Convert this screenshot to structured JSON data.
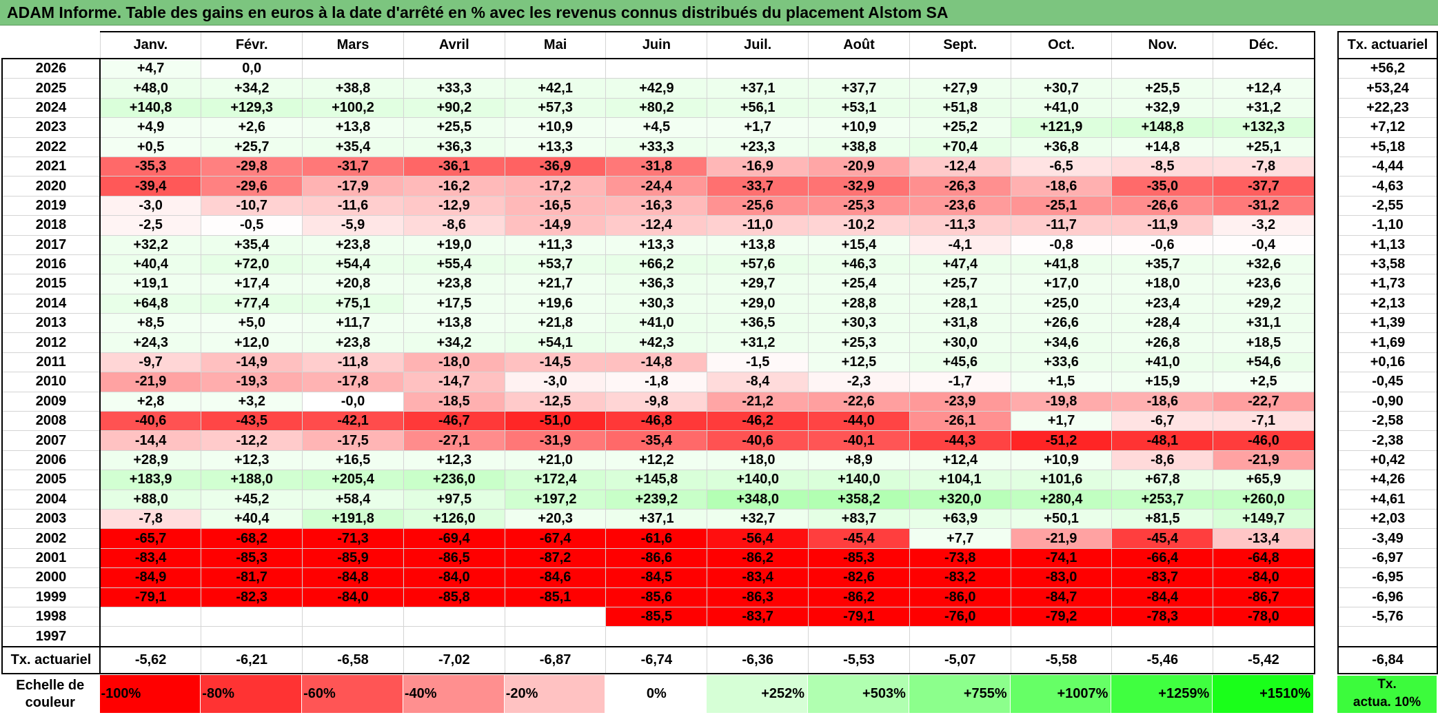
{
  "title": "ADAM Informe. Table des gains en euros à la date d'arrêté en % avec les revenus connus distribués du placement Alstom SA",
  "months": [
    "Janv.",
    "Févr.",
    "Mars",
    "Avril",
    "Mai",
    "Juin",
    "Juil.",
    "Août",
    "Sept.",
    "Oct.",
    "Nov.",
    "Déc."
  ],
  "side_header": "Tx. actuariel",
  "rows": [
    {
      "year": "2026",
      "values": [
        "+4,7",
        "0,0",
        "",
        "",
        "",
        "",
        "",
        "",
        "",
        "",
        "",
        ""
      ],
      "tx": "+56,2"
    },
    {
      "year": "2025",
      "values": [
        "+48,0",
        "+34,2",
        "+38,8",
        "+33,3",
        "+42,1",
        "+42,9",
        "+37,1",
        "+37,7",
        "+27,9",
        "+30,7",
        "+25,5",
        "+12,4"
      ],
      "tx": "+53,24"
    },
    {
      "year": "2024",
      "values": [
        "+140,8",
        "+129,3",
        "+100,2",
        "+90,2",
        "+57,3",
        "+80,2",
        "+56,1",
        "+53,1",
        "+51,8",
        "+41,0",
        "+32,9",
        "+31,2"
      ],
      "tx": "+22,23"
    },
    {
      "year": "2023",
      "values": [
        "+4,9",
        "+2,6",
        "+13,8",
        "+25,5",
        "+10,9",
        "+4,5",
        "+1,7",
        "+10,9",
        "+25,2",
        "+121,9",
        "+148,8",
        "+132,3"
      ],
      "tx": "+7,12"
    },
    {
      "year": "2022",
      "values": [
        "+0,5",
        "+25,7",
        "+35,4",
        "+36,3",
        "+13,3",
        "+33,3",
        "+23,3",
        "+38,8",
        "+70,4",
        "+36,8",
        "+14,8",
        "+25,1"
      ],
      "tx": "+5,18"
    },
    {
      "year": "2021",
      "values": [
        "-35,3",
        "-29,8",
        "-31,7",
        "-36,1",
        "-36,9",
        "-31,8",
        "-16,9",
        "-20,9",
        "-12,4",
        "-6,5",
        "-8,5",
        "-7,8"
      ],
      "tx": "-4,44"
    },
    {
      "year": "2020",
      "values": [
        "-39,4",
        "-29,6",
        "-17,9",
        "-16,2",
        "-17,2",
        "-24,4",
        "-33,7",
        "-32,9",
        "-26,3",
        "-18,6",
        "-35,0",
        "-37,7"
      ],
      "tx": "-4,63"
    },
    {
      "year": "2019",
      "values": [
        "-3,0",
        "-10,7",
        "-11,6",
        "-12,9",
        "-16,5",
        "-16,3",
        "-25,6",
        "-25,3",
        "-23,6",
        "-25,1",
        "-26,6",
        "-31,2"
      ],
      "tx": "-2,55"
    },
    {
      "year": "2018",
      "values": [
        "-2,5",
        "-0,5",
        "-5,9",
        "-8,6",
        "-14,9",
        "-12,4",
        "-11,0",
        "-10,2",
        "-11,3",
        "-11,7",
        "-11,9",
        "-3,2"
      ],
      "tx": "-1,10"
    },
    {
      "year": "2017",
      "values": [
        "+32,2",
        "+35,4",
        "+23,8",
        "+19,0",
        "+11,3",
        "+13,3",
        "+13,8",
        "+15,4",
        "-4,1",
        "-0,8",
        "-0,6",
        "-0,4"
      ],
      "tx": "+1,13"
    },
    {
      "year": "2016",
      "values": [
        "+40,4",
        "+72,0",
        "+54,4",
        "+55,4",
        "+53,7",
        "+66,2",
        "+57,6",
        "+46,3",
        "+47,4",
        "+41,8",
        "+35,7",
        "+32,6"
      ],
      "tx": "+3,58"
    },
    {
      "year": "2015",
      "values": [
        "+19,1",
        "+17,4",
        "+20,8",
        "+23,8",
        "+21,7",
        "+36,3",
        "+29,7",
        "+25,4",
        "+25,7",
        "+17,0",
        "+18,0",
        "+23,6"
      ],
      "tx": "+1,73"
    },
    {
      "year": "2014",
      "values": [
        "+64,8",
        "+77,4",
        "+75,1",
        "+17,5",
        "+19,6",
        "+30,3",
        "+29,0",
        "+28,8",
        "+28,1",
        "+25,0",
        "+23,4",
        "+29,2"
      ],
      "tx": "+2,13"
    },
    {
      "year": "2013",
      "values": [
        "+8,5",
        "+5,0",
        "+11,7",
        "+13,8",
        "+21,8",
        "+41,0",
        "+36,5",
        "+30,3",
        "+31,8",
        "+26,6",
        "+28,4",
        "+31,1"
      ],
      "tx": "+1,39"
    },
    {
      "year": "2012",
      "values": [
        "+24,3",
        "+12,0",
        "+23,8",
        "+34,2",
        "+54,1",
        "+42,3",
        "+31,2",
        "+25,3",
        "+30,0",
        "+34,6",
        "+26,8",
        "+18,5"
      ],
      "tx": "+1,69"
    },
    {
      "year": "2011",
      "values": [
        "-9,7",
        "-14,9",
        "-11,8",
        "-18,0",
        "-14,5",
        "-14,8",
        "-1,5",
        "+12,5",
        "+45,6",
        "+33,6",
        "+41,0",
        "+54,6"
      ],
      "tx": "+0,16"
    },
    {
      "year": "2010",
      "values": [
        "-21,9",
        "-19,3",
        "-17,8",
        "-14,7",
        "-3,0",
        "-1,8",
        "-8,4",
        "-2,3",
        "-1,7",
        "+1,5",
        "+15,9",
        "+2,5"
      ],
      "tx": "-0,45"
    },
    {
      "year": "2009",
      "values": [
        "+2,8",
        "+3,2",
        "-0,0",
        "-18,5",
        "-12,5",
        "-9,8",
        "-21,2",
        "-22,6",
        "-23,9",
        "-19,8",
        "-18,6",
        "-22,7"
      ],
      "tx": "-0,90"
    },
    {
      "year": "2008",
      "values": [
        "-40,6",
        "-43,5",
        "-42,1",
        "-46,7",
        "-51,0",
        "-46,8",
        "-46,2",
        "-44,0",
        "-26,1",
        "+1,7",
        "-6,7",
        "-7,1"
      ],
      "tx": "-2,58"
    },
    {
      "year": "2007",
      "values": [
        "-14,4",
        "-12,2",
        "-17,5",
        "-27,1",
        "-31,9",
        "-35,4",
        "-40,6",
        "-40,1",
        "-44,3",
        "-51,2",
        "-48,1",
        "-46,0"
      ],
      "tx": "-2,38"
    },
    {
      "year": "2006",
      "values": [
        "+28,9",
        "+12,3",
        "+16,5",
        "+12,3",
        "+21,0",
        "+12,2",
        "+18,0",
        "+8,9",
        "+12,4",
        "+10,9",
        "-8,6",
        "-21,9"
      ],
      "tx": "+0,42"
    },
    {
      "year": "2005",
      "values": [
        "+183,9",
        "+188,0",
        "+205,4",
        "+236,0",
        "+172,4",
        "+145,8",
        "+140,0",
        "+140,0",
        "+104,1",
        "+101,6",
        "+67,8",
        "+65,9"
      ],
      "tx": "+4,26"
    },
    {
      "year": "2004",
      "values": [
        "+88,0",
        "+45,2",
        "+58,4",
        "+97,5",
        "+197,2",
        "+239,2",
        "+348,0",
        "+358,2",
        "+320,0",
        "+280,4",
        "+253,7",
        "+260,0"
      ],
      "tx": "+4,61"
    },
    {
      "year": "2003",
      "values": [
        "-7,8",
        "+40,4",
        "+191,8",
        "+126,0",
        "+20,3",
        "+37,1",
        "+32,7",
        "+83,7",
        "+63,9",
        "+50,1",
        "+81,5",
        "+149,7"
      ],
      "tx": "+2,03"
    },
    {
      "year": "2002",
      "values": [
        "-65,7",
        "-68,2",
        "-71,3",
        "-69,4",
        "-67,4",
        "-61,6",
        "-56,4",
        "-45,4",
        "+7,7",
        "-21,9",
        "-45,4",
        "-13,4"
      ],
      "tx": "-3,49"
    },
    {
      "year": "2001",
      "values": [
        "-83,4",
        "-85,3",
        "-85,9",
        "-86,5",
        "-87,2",
        "-86,6",
        "-86,2",
        "-85,3",
        "-73,8",
        "-74,1",
        "-66,4",
        "-64,8"
      ],
      "tx": "-6,97"
    },
    {
      "year": "2000",
      "values": [
        "-84,9",
        "-81,7",
        "-84,8",
        "-84,0",
        "-84,6",
        "-84,5",
        "-83,4",
        "-82,6",
        "-83,2",
        "-83,0",
        "-83,7",
        "-84,0"
      ],
      "tx": "-6,95"
    },
    {
      "year": "1999",
      "values": [
        "-79,1",
        "-82,3",
        "-84,0",
        "-85,8",
        "-85,1",
        "-85,6",
        "-86,3",
        "-86,2",
        "-86,0",
        "-84,7",
        "-84,4",
        "-86,7"
      ],
      "tx": "-6,96"
    },
    {
      "year": "1998",
      "values": [
        "",
        "",
        "",
        "",
        "",
        "-85,5",
        "-83,7",
        "-79,1",
        "-76,0",
        "-79,2",
        "-78,3",
        "-78,0"
      ],
      "tx": "-5,76"
    },
    {
      "year": "1997",
      "values": [
        "",
        "",
        "",
        "",
        "",
        "",
        "",
        "",
        "",
        "",
        "",
        ""
      ],
      "tx": ""
    }
  ],
  "tx_row": {
    "label": "Tx. actuariel",
    "values": [
      "-5,62",
      "-6,21",
      "-6,58",
      "-7,02",
      "-6,87",
      "-6,74",
      "-6,36",
      "-5,53",
      "-5,07",
      "-5,58",
      "-5,46",
      "-5,42"
    ],
    "total": "-6,84"
  },
  "legend": {
    "label_line1": "Echelle de",
    "label_line2": "couleur",
    "swatches": [
      {
        "label": "-100%",
        "color": "#ff0000"
      },
      {
        "label": "-80%",
        "color": "#ff3333"
      },
      {
        "label": "-60%",
        "color": "#ff5555"
      },
      {
        "label": "-40%",
        "color": "#ff8f8f"
      },
      {
        "label": "-20%",
        "color": "#ffc2c2"
      },
      {
        "label": "0%",
        "color": "#ffffff"
      },
      {
        "label": "+252%",
        "color": "#d6ffd6"
      },
      {
        "label": "+503%",
        "color": "#b0ffb0"
      },
      {
        "label": "+755%",
        "color": "#8cff8c"
      },
      {
        "label": "+1007%",
        "color": "#66ff66"
      },
      {
        "label": "+1259%",
        "color": "#40ff40"
      },
      {
        "label": "+1510%",
        "color": "#1aff1a"
      }
    ],
    "side_line1": "Tx.",
    "side_line2": "actua. 10%",
    "side_color": "#3cfb3c"
  },
  "colors": {
    "title_bg": "#7cc57f",
    "positive_max": "#1aff1a",
    "negative_max": "#ff0000"
  }
}
